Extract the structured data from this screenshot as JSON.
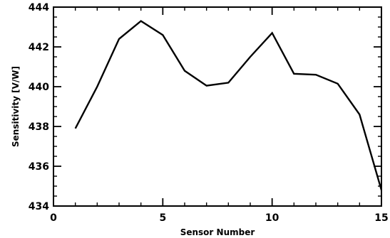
{
  "chart_data": {
    "type": "line",
    "title": "",
    "xlabel": "Sensor Number",
    "ylabel": "Sensitivity [V/W]",
    "xlim": [
      0,
      15
    ],
    "ylim": [
      434,
      444
    ],
    "grid": false,
    "x_ticks": [
      0,
      5,
      10,
      15
    ],
    "x_tick_labels": [
      "0",
      "5",
      "10",
      "15"
    ],
    "y_ticks": [
      434,
      436,
      438,
      440,
      442,
      444
    ],
    "y_tick_labels": [
      "434",
      "436",
      "438",
      "440",
      "442",
      "444"
    ],
    "series": [
      {
        "x": [
          1,
          2,
          3,
          4,
          5,
          6,
          7,
          8,
          9,
          10,
          11,
          12,
          13,
          14,
          15
        ],
        "y": [
          437.9,
          440.0,
          442.4,
          443.3,
          442.6,
          440.8,
          440.05,
          440.2,
          441.5,
          442.7,
          440.65,
          440.6,
          440.15,
          438.6,
          434.8
        ],
        "color": "#000000"
      }
    ]
  }
}
